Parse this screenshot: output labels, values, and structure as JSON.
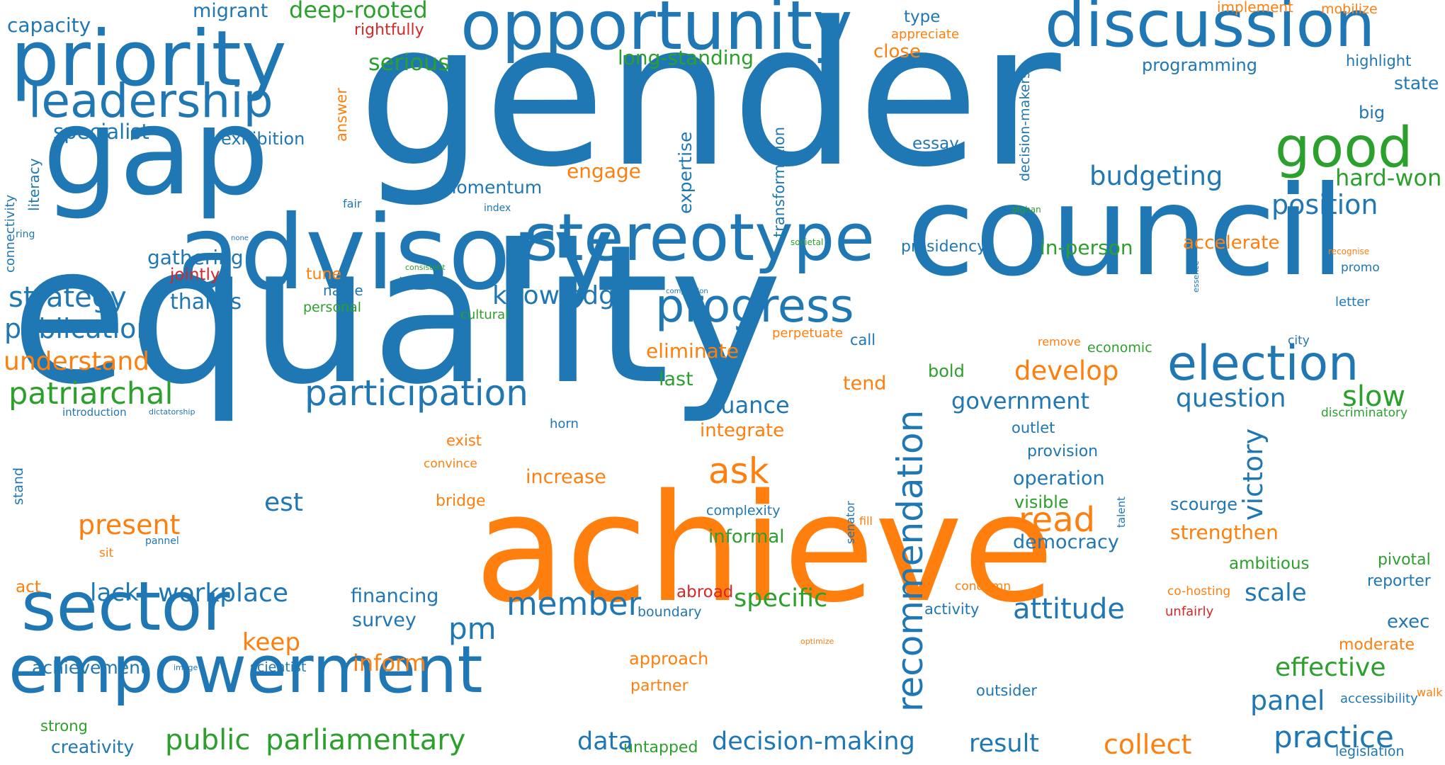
{
  "colors": {
    "blue": "#1f77b4",
    "orange": "#ff7f0e",
    "green": "#2ca02c",
    "red": "#d62728"
  },
  "words": [
    {
      "text": "gender",
      "color": "blue"
    },
    {
      "text": "equality",
      "color": "blue"
    },
    {
      "text": "achieve",
      "color": "orange"
    },
    {
      "text": "gap",
      "color": "blue"
    },
    {
      "text": "council",
      "color": "blue"
    },
    {
      "text": "advisory",
      "color": "blue"
    },
    {
      "text": "opportunity",
      "color": "blue"
    },
    {
      "text": "discussion",
      "color": "blue"
    },
    {
      "text": "priority",
      "color": "blue"
    },
    {
      "text": "stereotype",
      "color": "blue"
    },
    {
      "text": "empowerment",
      "color": "blue"
    },
    {
      "text": "sector",
      "color": "blue"
    },
    {
      "text": "election",
      "color": "blue"
    },
    {
      "text": "good",
      "color": "green"
    },
    {
      "text": "progress",
      "color": "blue"
    },
    {
      "text": "leadership",
      "color": "blue"
    },
    {
      "text": "participation",
      "color": "blue"
    },
    {
      "text": "recommendation",
      "color": "blue"
    },
    {
      "text": "member",
      "color": "blue"
    },
    {
      "text": "ask",
      "color": "orange"
    },
    {
      "text": "read",
      "color": "orange"
    },
    {
      "text": "position",
      "color": "blue"
    },
    {
      "text": "budgeting",
      "color": "blue"
    },
    {
      "text": "hard-won",
      "color": "green"
    },
    {
      "text": "knowledge",
      "color": "blue"
    },
    {
      "text": "attitude",
      "color": "blue"
    },
    {
      "text": "strategy",
      "color": "blue"
    },
    {
      "text": "publication",
      "color": "blue"
    },
    {
      "text": "patriarchal",
      "color": "green"
    },
    {
      "text": "understand",
      "color": "orange"
    },
    {
      "text": "present",
      "color": "orange"
    },
    {
      "text": "workplace",
      "color": "blue"
    },
    {
      "text": "public",
      "color": "green"
    },
    {
      "text": "parliamentary",
      "color": "green"
    },
    {
      "text": "decision-making",
      "color": "blue"
    },
    {
      "text": "practice",
      "color": "blue"
    },
    {
      "text": "collect",
      "color": "orange"
    },
    {
      "text": "result",
      "color": "blue"
    },
    {
      "text": "panel",
      "color": "blue"
    },
    {
      "text": "effective",
      "color": "green"
    },
    {
      "text": "question",
      "color": "blue"
    },
    {
      "text": "slow",
      "color": "green"
    },
    {
      "text": "develop",
      "color": "orange"
    },
    {
      "text": "government",
      "color": "blue"
    },
    {
      "text": "victory",
      "color": "blue"
    },
    {
      "text": "specific",
      "color": "green"
    },
    {
      "text": "scale",
      "color": "blue"
    },
    {
      "text": "pm",
      "color": "blue"
    },
    {
      "text": "data",
      "color": "blue"
    },
    {
      "text": "est",
      "color": "blue"
    },
    {
      "text": "lack",
      "color": "blue"
    },
    {
      "text": "keep",
      "color": "orange"
    },
    {
      "text": "inform",
      "color": "orange"
    },
    {
      "text": "nuance",
      "color": "blue"
    },
    {
      "text": "serious",
      "color": "green"
    },
    {
      "text": "deep-rooted",
      "color": "green"
    },
    {
      "text": "long-standing",
      "color": "green"
    },
    {
      "text": "specialist",
      "color": "blue"
    },
    {
      "text": "migrant",
      "color": "blue"
    },
    {
      "text": "capacity",
      "color": "blue"
    },
    {
      "text": "exhibition",
      "color": "blue"
    },
    {
      "text": "momentum",
      "color": "blue"
    },
    {
      "text": "engage",
      "color": "orange"
    },
    {
      "text": "gathering",
      "color": "blue"
    },
    {
      "text": "thanks",
      "color": "blue"
    },
    {
      "text": "in-person",
      "color": "green"
    },
    {
      "text": "accelerate",
      "color": "orange"
    },
    {
      "text": "presidency",
      "color": "blue"
    },
    {
      "text": "eliminate",
      "color": "orange"
    },
    {
      "text": "last",
      "color": "green"
    },
    {
      "text": "tend",
      "color": "orange"
    },
    {
      "text": "bold",
      "color": "green"
    },
    {
      "text": "integrate",
      "color": "orange"
    },
    {
      "text": "increase",
      "color": "orange"
    },
    {
      "text": "operation",
      "color": "blue"
    },
    {
      "text": "democracy",
      "color": "blue"
    },
    {
      "text": "visible",
      "color": "green"
    },
    {
      "text": "provision",
      "color": "blue"
    },
    {
      "text": "outlet",
      "color": "blue"
    },
    {
      "text": "scourge",
      "color": "blue"
    },
    {
      "text": "strengthen",
      "color": "orange"
    },
    {
      "text": "ambitious",
      "color": "green"
    },
    {
      "text": "pivotal",
      "color": "green"
    },
    {
      "text": "reporter",
      "color": "blue"
    },
    {
      "text": "exec",
      "color": "blue"
    },
    {
      "text": "moderate",
      "color": "orange"
    },
    {
      "text": "accessibility",
      "color": "blue"
    },
    {
      "text": "legislation",
      "color": "blue"
    },
    {
      "text": "walk",
      "color": "orange"
    },
    {
      "text": "informal",
      "color": "green"
    },
    {
      "text": "complexity",
      "color": "blue"
    },
    {
      "text": "financing",
      "color": "blue"
    },
    {
      "text": "survey",
      "color": "blue"
    },
    {
      "text": "achievement",
      "color": "blue"
    },
    {
      "text": "scientist",
      "color": "blue"
    },
    {
      "text": "creativity",
      "color": "blue"
    },
    {
      "text": "strong",
      "color": "green"
    },
    {
      "text": "untapped",
      "color": "green"
    },
    {
      "text": "approach",
      "color": "orange"
    },
    {
      "text": "partner",
      "color": "orange"
    },
    {
      "text": "abroad",
      "color": "red"
    },
    {
      "text": "boundary",
      "color": "blue"
    },
    {
      "text": "activity",
      "color": "blue"
    },
    {
      "text": "outsider",
      "color": "blue"
    },
    {
      "text": "condemn",
      "color": "orange"
    },
    {
      "text": "co-hosting",
      "color": "orange"
    },
    {
      "text": "unfairly",
      "color": "red"
    },
    {
      "text": "essay",
      "color": "blue"
    },
    {
      "text": "type",
      "color": "blue"
    },
    {
      "text": "close",
      "color": "orange"
    },
    {
      "text": "appreciate",
      "color": "orange"
    },
    {
      "text": "implement",
      "color": "orange"
    },
    {
      "text": "mobilize",
      "color": "orange"
    },
    {
      "text": "programming",
      "color": "blue"
    },
    {
      "text": "highlight",
      "color": "blue"
    },
    {
      "text": "state",
      "color": "blue"
    },
    {
      "text": "big",
      "color": "blue"
    },
    {
      "text": "rightfully",
      "color": "red"
    },
    {
      "text": "jointly",
      "color": "red"
    },
    {
      "text": "tune",
      "color": "orange"
    },
    {
      "text": "name",
      "color": "blue"
    },
    {
      "text": "personal",
      "color": "green"
    },
    {
      "text": "cultural",
      "color": "green"
    },
    {
      "text": "fair",
      "color": "blue"
    },
    {
      "text": "index",
      "color": "blue"
    },
    {
      "text": "none",
      "color": "blue"
    },
    {
      "text": "ring",
      "color": "blue"
    },
    {
      "text": "consistent",
      "color": "green"
    },
    {
      "text": "competition",
      "color": "blue"
    },
    {
      "text": "societal",
      "color": "green"
    },
    {
      "text": "afghan",
      "color": "green"
    },
    {
      "text": "recognise",
      "color": "orange"
    },
    {
      "text": "promo",
      "color": "blue"
    },
    {
      "text": "letter",
      "color": "blue"
    },
    {
      "text": "city",
      "color": "blue"
    },
    {
      "text": "remove",
      "color": "orange"
    },
    {
      "text": "economic",
      "color": "green"
    },
    {
      "text": "perpetuate",
      "color": "orange"
    },
    {
      "text": "call",
      "color": "blue"
    },
    {
      "text": "discriminatory",
      "color": "green"
    },
    {
      "text": "introduction",
      "color": "blue"
    },
    {
      "text": "dictatorship",
      "color": "blue"
    },
    {
      "text": "exist",
      "color": "orange"
    },
    {
      "text": "convince",
      "color": "orange"
    },
    {
      "text": "bridge",
      "color": "orange"
    },
    {
      "text": "horn",
      "color": "blue"
    },
    {
      "text": "fill",
      "color": "orange"
    },
    {
      "text": "sit",
      "color": "orange"
    },
    {
      "text": "pannel",
      "color": "blue"
    },
    {
      "text": "act",
      "color": "orange"
    },
    {
      "text": "image",
      "color": "blue"
    },
    {
      "text": "optimize",
      "color": "orange"
    },
    {
      "text": "stand",
      "color": "blue"
    },
    {
      "text": "literacy",
      "color": "blue"
    },
    {
      "text": "connectivity",
      "color": "blue"
    },
    {
      "text": "answer",
      "color": "orange"
    },
    {
      "text": "expertise",
      "color": "blue"
    },
    {
      "text": "transformation",
      "color": "blue"
    },
    {
      "text": "decision-makers",
      "color": "blue"
    },
    {
      "text": "essence",
      "color": "blue"
    },
    {
      "text": "senator",
      "color": "blue"
    },
    {
      "text": "talent",
      "color": "blue"
    }
  ]
}
